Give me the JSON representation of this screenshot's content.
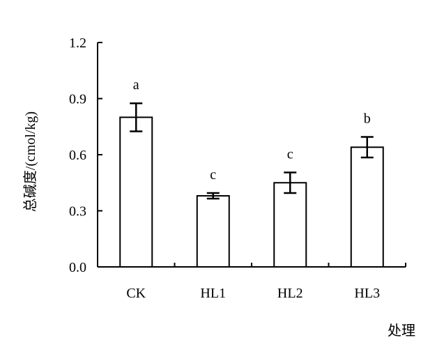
{
  "chart_data": {
    "type": "bar",
    "title": "",
    "xlabel": "处理",
    "ylabel": "总碱度/(cmol/kg)",
    "categories": [
      "CK",
      "HL1",
      "HL2",
      "HL3"
    ],
    "values": [
      0.8,
      0.38,
      0.45,
      0.64
    ],
    "errors": [
      0.075,
      0.015,
      0.055,
      0.055
    ],
    "significance_labels": [
      "a",
      "c",
      "c",
      "b"
    ],
    "ylim": [
      0.0,
      1.2
    ],
    "yticks": [
      0.0,
      0.3,
      0.6,
      0.9,
      1.2
    ],
    "ytick_labels": [
      "0.0",
      "0.3",
      "0.6",
      "0.9",
      "1.2"
    ],
    "grid": false,
    "legend": "none",
    "bar_fill": "#ffffff",
    "bar_stroke": "#000000"
  }
}
